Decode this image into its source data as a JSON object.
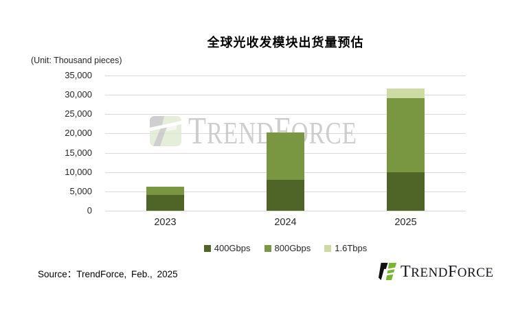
{
  "title": "全球光收发模块出货量预估",
  "unit_label": "(Unit: Thousand pieces)",
  "source": "Source：TrendForce,  Feb.,  2025",
  "watermark": {
    "brand_text": "TrendForce"
  },
  "footer_logo": {
    "brand_text": "TrendForce"
  },
  "chart_data": {
    "type": "bar",
    "stacked": true,
    "title": "全球光收发模块出货量预估",
    "unit": "Thousand pieces",
    "categories": [
      "2023",
      "2024",
      "2025"
    ],
    "series": [
      {
        "name": "400Gbps",
        "color": "#4e6527",
        "values": [
          4000,
          8000,
          10000
        ]
      },
      {
        "name": "800Gbps",
        "color": "#789740",
        "values": [
          2300,
          12200,
          19200
        ]
      },
      {
        "name": "1.6Tbps",
        "color": "#cbdba2",
        "values": [
          0,
          0,
          2400
        ]
      }
    ],
    "totals": [
      6300,
      20200,
      31600
    ],
    "ylim": [
      0,
      35000
    ],
    "y_tick_labels": [
      "35,000",
      "30,000",
      "25,000",
      "20,000",
      "15,000",
      "10,000",
      "5,000",
      "0"
    ],
    "grid": true,
    "gridline_color": "#d9d9d9",
    "legend_position": "bottom"
  }
}
